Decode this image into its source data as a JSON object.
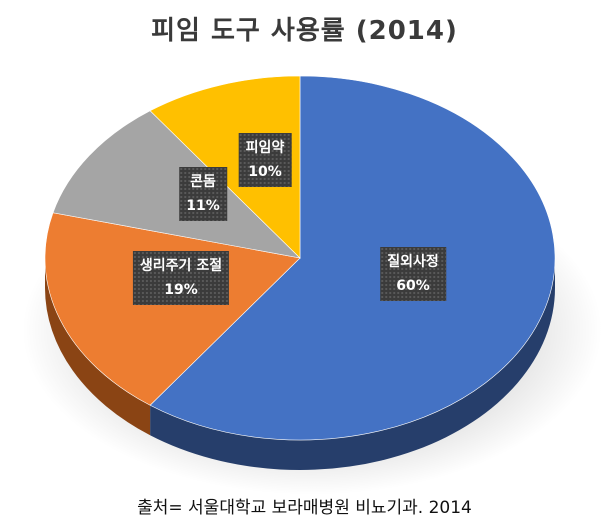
{
  "chart_data": {
    "type": "pie",
    "title": "피임 도구 사용률 (2014)",
    "slices": [
      {
        "label": "질외사정",
        "value": 60,
        "value_label": "60%",
        "color": "#4472c4",
        "side_color": "#263e6b"
      },
      {
        "label": "생리주기 조절",
        "value": 19,
        "value_label": "19%",
        "color": "#ed7d31",
        "side_color": "#8a4414"
      },
      {
        "label": "콘돔",
        "value": 11,
        "value_label": "11%",
        "color": "#a5a5a5",
        "side_color": "#5e5e5e"
      },
      {
        "label": "피임약",
        "value": 10,
        "value_label": "10%",
        "color": "#ffc000",
        "side_color": "#8f6b00"
      }
    ],
    "start_angle_deg": 0,
    "direction": "clockwise",
    "style": "3d",
    "legend": "none"
  },
  "source": "출처= 서울대학교 보라매병원 비뇨기과. 2014"
}
